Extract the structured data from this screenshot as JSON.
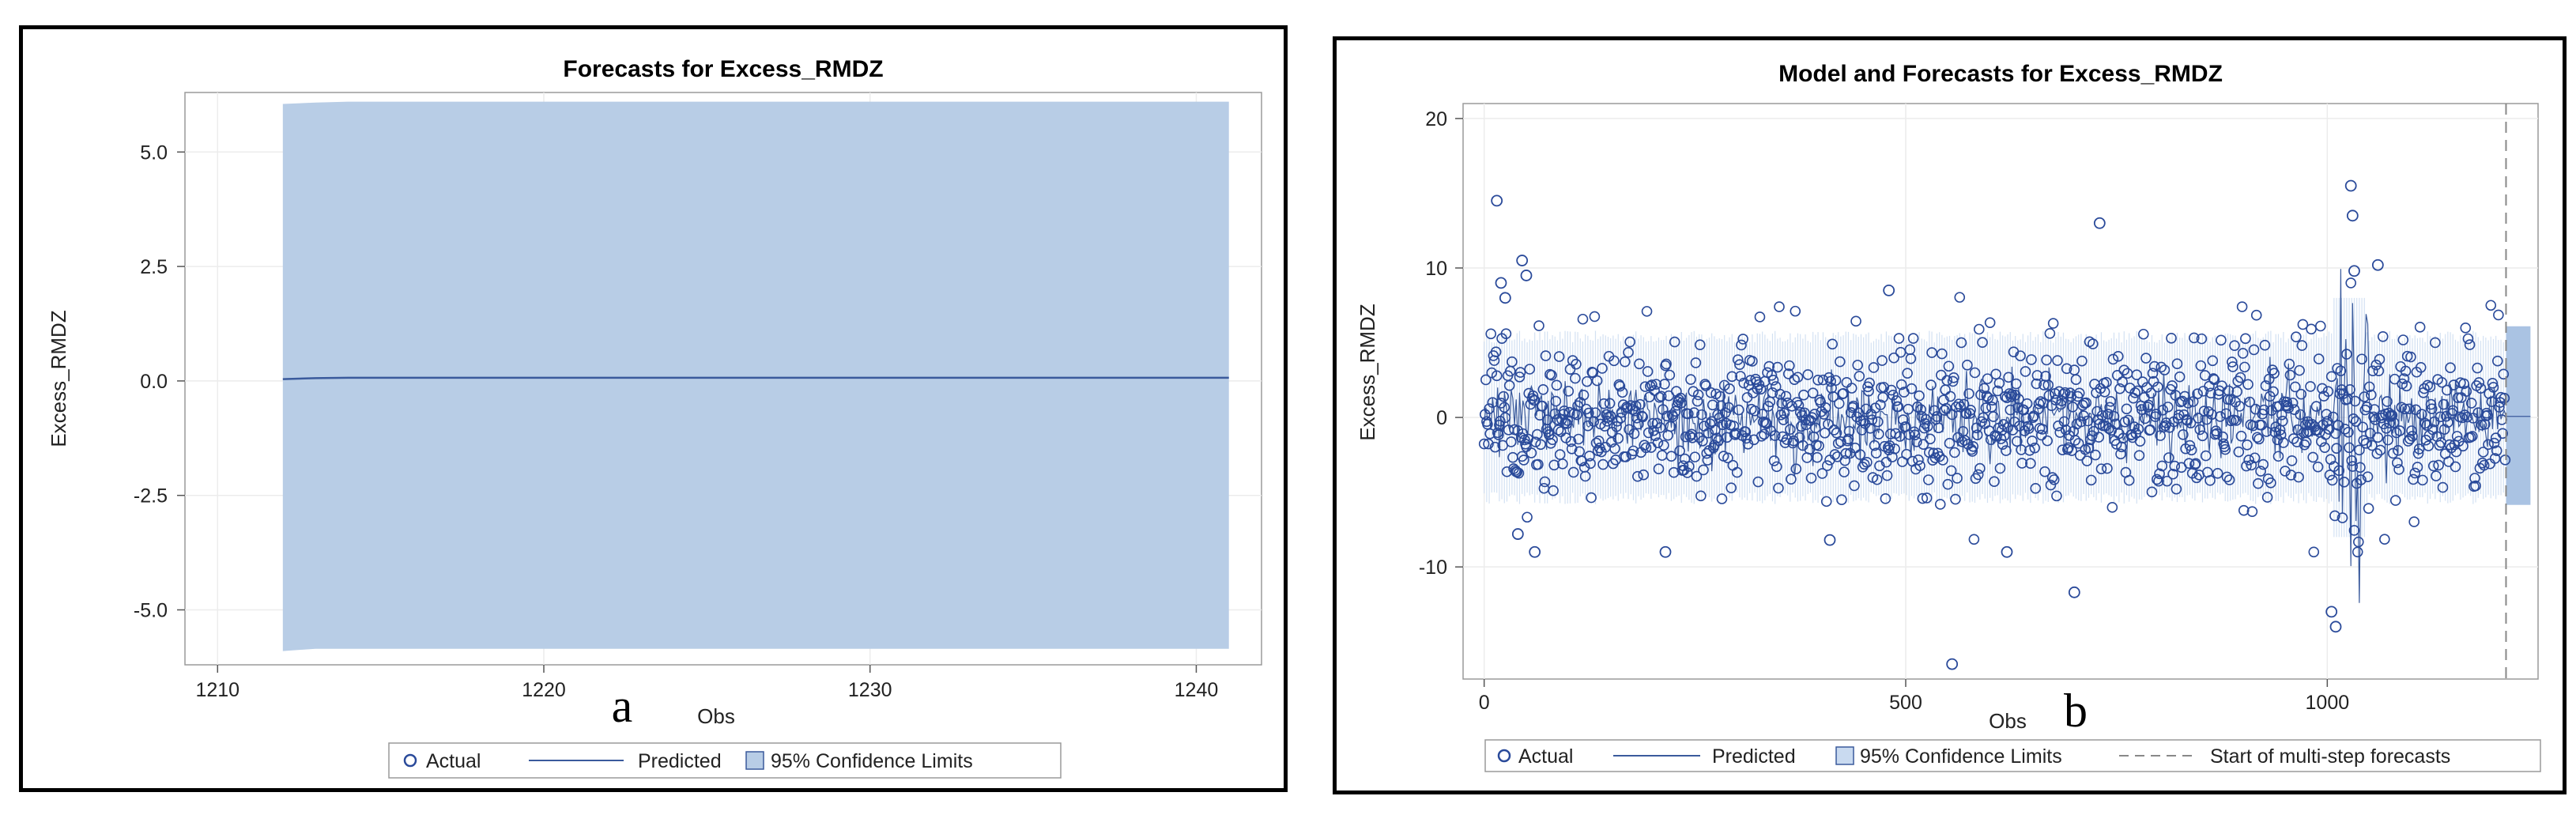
{
  "panels": [
    {
      "label": "a",
      "chart_data": {
        "type": "area",
        "title": "Forecasts for Excess_RMDZ",
        "xlabel": "Obs",
        "ylabel": "Excess_RMDZ",
        "xlim": [
          1209,
          1242
        ],
        "ylim": [
          -6.2,
          6.3
        ],
        "xticks": [
          1210,
          1220,
          1230,
          1240
        ],
        "xtick_labels": [
          "1210",
          "1220",
          "1230",
          "1240"
        ],
        "yticks": [
          -5.0,
          -2.5,
          0.0,
          2.5,
          5.0
        ],
        "ytick_labels": [
          "-5.0",
          "-2.5",
          "0.0",
          "2.5",
          "5.0"
        ],
        "grid": true,
        "legend_position": "bottom",
        "legend": [
          "Actual",
          "Predicted",
          "95% Confidence Limits"
        ],
        "series": [
          {
            "name": "Predicted",
            "x": [
              1212,
              1213,
              1214,
              1216,
              1220,
              1225,
              1230,
              1235,
              1241
            ],
            "y": [
              0.04,
              0.06,
              0.07,
              0.07,
              0.07,
              0.07,
              0.07,
              0.07,
              0.07
            ]
          },
          {
            "name": "95% Confidence Limits",
            "x": [
              1212,
              1213,
              1214,
              1216,
              1220,
              1225,
              1230,
              1235,
              1241
            ],
            "lower": [
              -5.9,
              -5.85,
              -5.85,
              -5.85,
              -5.85,
              -5.85,
              -5.85,
              -5.85,
              -5.85
            ],
            "upper": [
              6.05,
              6.08,
              6.1,
              6.1,
              6.1,
              6.1,
              6.1,
              6.1,
              6.1
            ]
          }
        ],
        "colors": {
          "band": "#b8cde6",
          "line": "#3a5a9c",
          "marker": "#2a4a9a"
        }
      }
    },
    {
      "label": "b",
      "chart_data": {
        "type": "scatter",
        "title": "Model and Forecasts for Excess_RMDZ",
        "xlabel": "Obs",
        "ylabel": "Excess_RMDZ",
        "xlim": [
          -25,
          1250
        ],
        "ylim": [
          -17.5,
          21
        ],
        "xticks": [
          0,
          500,
          1000
        ],
        "xtick_labels": [
          "0",
          "500",
          "1000"
        ],
        "yticks": [
          -10,
          0,
          10,
          20
        ],
        "ytick_labels": [
          "-10",
          "0",
          "10",
          "20"
        ],
        "grid": true,
        "legend_position": "bottom",
        "legend": [
          "Actual",
          "Predicted",
          "95% Confidence Limits",
          "Start of multi-step forecasts"
        ],
        "forecast_start": 1212,
        "forecast_band": {
          "x": [
            1212,
            1241
          ],
          "lower": -5.85,
          "upper": 6.1
        },
        "series": [
          {
            "name": "Actual (notable points)",
            "x": [
              15,
              20,
              25,
              45,
              50,
              40,
              555,
              700,
              730,
              1005,
              1010,
              1028,
              1030,
              1032,
              1060,
              480,
              620,
              60,
              215,
              410
            ],
            "y": [
              14.5,
              9,
              8,
              10.5,
              9.5,
              -7.8,
              -16.5,
              -11.7,
              13,
              -13,
              -14,
              15.5,
              13.5,
              9.8,
              10.2,
              8.5,
              -9,
              -9,
              -9,
              -8.2
            ]
          }
        ],
        "scatter_points": 1240,
        "colors": {
          "band": "#c9daf0",
          "line": "#3a5a9c",
          "marker": "#2a4a9a",
          "refline": "#888888"
        }
      }
    }
  ]
}
